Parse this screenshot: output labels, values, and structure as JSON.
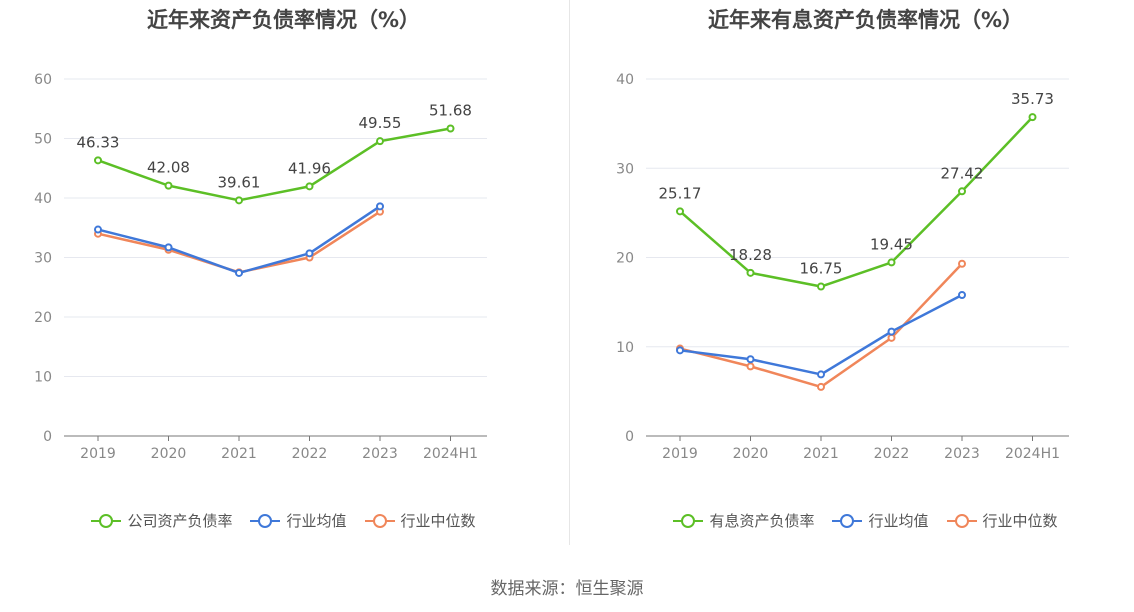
{
  "source": "数据来源：恒生聚源",
  "colors": {
    "company": "#5cbf26",
    "industry_avg": "#3f78d9",
    "industry_median": "#f0865a"
  },
  "chart_data": [
    {
      "type": "line",
      "title": "近年来资产负债率情况（%）",
      "categories": [
        "2019",
        "2020",
        "2021",
        "2022",
        "2023",
        "2024H1"
      ],
      "ylim": [
        0,
        60
      ],
      "yticks": [
        0,
        10,
        20,
        30,
        40,
        50,
        60
      ],
      "grid": true,
      "legend_position": "bottom",
      "series": [
        {
          "name": "公司资产负债率",
          "color": "#5cbf26",
          "values": [
            46.33,
            42.08,
            39.61,
            41.96,
            49.55,
            51.68
          ],
          "labels": true
        },
        {
          "name": "行业均值",
          "color": "#3f78d9",
          "values": [
            34.7,
            31.7,
            27.4,
            30.7,
            38.6,
            null
          ],
          "labels": false
        },
        {
          "name": "行业中位数",
          "color": "#f0865a",
          "values": [
            34.0,
            31.3,
            27.5,
            30.0,
            37.7,
            null
          ],
          "labels": false
        }
      ]
    },
    {
      "type": "line",
      "title": "近年来有息资产负债率情况（%）",
      "categories": [
        "2019",
        "2020",
        "2021",
        "2022",
        "2023",
        "2024H1"
      ],
      "ylim": [
        0,
        40
      ],
      "yticks": [
        0,
        10,
        20,
        30,
        40
      ],
      "grid": true,
      "legend_position": "bottom",
      "series": [
        {
          "name": "有息资产负债率",
          "color": "#5cbf26",
          "values": [
            25.17,
            18.28,
            16.75,
            19.45,
            27.42,
            35.73
          ],
          "labels": true
        },
        {
          "name": "行业均值",
          "color": "#3f78d9",
          "values": [
            9.6,
            8.6,
            6.9,
            11.7,
            15.8,
            null
          ],
          "labels": false
        },
        {
          "name": "行业中位数",
          "color": "#f0865a",
          "values": [
            9.8,
            7.8,
            5.5,
            11.0,
            19.3,
            null
          ],
          "labels": false
        }
      ]
    }
  ]
}
